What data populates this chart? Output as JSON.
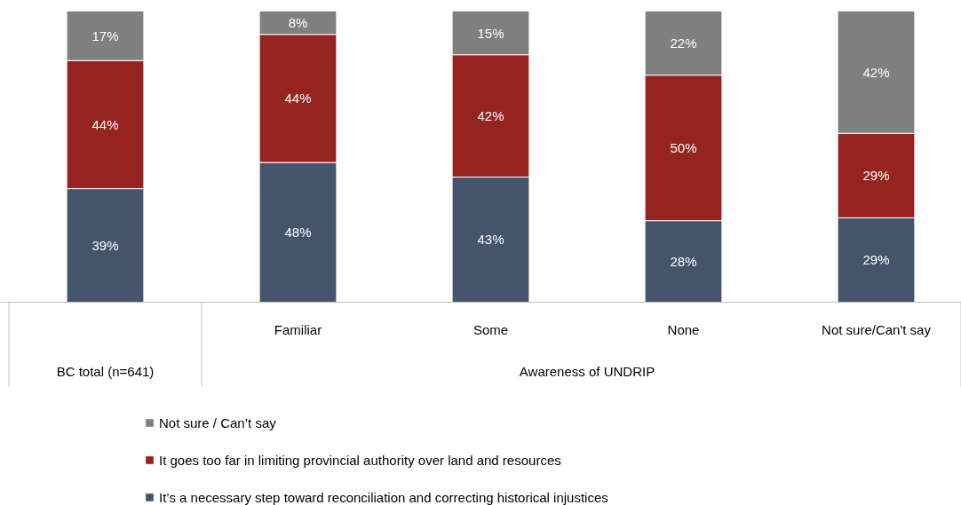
{
  "chart_data": {
    "type": "bar",
    "stacked": true,
    "legend": "bottom",
    "categories": [
      null,
      "Familiar",
      "Some",
      "None",
      "Not sure/Can't say"
    ],
    "annotations": [
      "BC total (n=641)",
      "Awareness of UNDRIP"
    ],
    "series": [
      {
        "name": "It’s a necessary step toward reconciliation and correcting historical injustices",
        "color": "#44546a",
        "values": [
          39,
          48,
          43,
          28,
          29
        ],
        "value_labels": [
          "39%",
          "48%",
          "43%",
          "28%",
          "29%"
        ]
      },
      {
        "name": "It goes too far in limiting provincial authority over land and resources",
        "color": "#952421",
        "values": [
          44,
          44,
          42,
          50,
          29
        ],
        "value_labels": [
          "44%",
          "44%",
          "42%",
          "50%",
          "29%"
        ]
      },
      {
        "name": "Not sure / Can’t say",
        "color": "#7f7f7f",
        "values": [
          17,
          8,
          15,
          22,
          42
        ],
        "value_labels": [
          "17%",
          "8%",
          "15%",
          "22%",
          "42%"
        ]
      }
    ]
  }
}
